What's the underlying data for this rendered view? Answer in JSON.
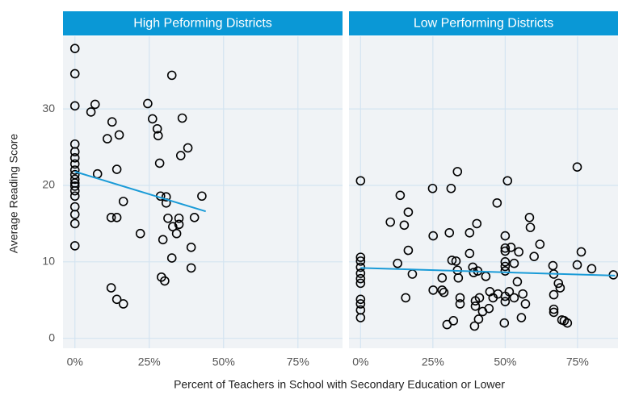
{
  "xlabel": "Percent of Teachers in School with Secondary Education or Lower",
  "ylabel": "Average Reading Score",
  "chart_data": [
    {
      "type": "scatter",
      "title": "High Peforming Districts",
      "xlim": [
        -4,
        90
      ],
      "ylim": [
        -1.3,
        39.5
      ],
      "xticks": [
        {
          "value": 0,
          "label": "0%"
        },
        {
          "value": 25,
          "label": "25%"
        },
        {
          "value": 50,
          "label": "50%"
        },
        {
          "value": 75,
          "label": "75%"
        }
      ],
      "yticks": [
        0,
        10,
        20,
        30
      ],
      "grid": true,
      "points": {
        "color": "#000000",
        "x": [
          0,
          0,
          0,
          0,
          0,
          0,
          0,
          0,
          0,
          0,
          0,
          0,
          0,
          0,
          0,
          0,
          0,
          0,
          5.4,
          6.8,
          7.6,
          10.9,
          12.5,
          12.2,
          12.2,
          14.1,
          14.1,
          14.9,
          14.1,
          16.3,
          16.3,
          22,
          24.5,
          26.1,
          27.7,
          28,
          28.5,
          28.8,
          29.6,
          29.1,
          30.2,
          30.7,
          30.7,
          31.3,
          32.6,
          32.9,
          32.6,
          34.2,
          35,
          35,
          36.1,
          35.6,
          38,
          39.1,
          39.1,
          40.2,
          42.7
        ],
        "y": [
          37.9,
          34.6,
          30.4,
          25.4,
          24.4,
          23.6,
          22.8,
          22,
          21.4,
          20.8,
          20.3,
          19.9,
          19.3,
          18.6,
          17.2,
          16.2,
          15,
          12.1,
          29.6,
          30.6,
          21.5,
          26.1,
          28.3,
          6.6,
          15.8,
          22.1,
          15.8,
          26.6,
          5.1,
          4.5,
          17.9,
          13.7,
          30.7,
          28.7,
          27.4,
          26.5,
          22.9,
          18.6,
          12.9,
          8,
          7.5,
          17.7,
          18.5,
          15.7,
          34.4,
          14.6,
          10.5,
          13.7,
          15.7,
          14.9,
          28.8,
          23.9,
          24.9,
          11.9,
          9.2,
          15.8,
          18.6
        ]
      },
      "trend": {
        "color": "#1a9bd7",
        "x": [
          0,
          44
        ],
        "y": [
          21.8,
          16.6
        ]
      }
    },
    {
      "type": "scatter",
      "title": "Low Performing Districts",
      "xlim": [
        -4,
        89
      ],
      "ylim": [
        -1.3,
        39.5
      ],
      "xticks": [
        {
          "value": 0,
          "label": "0%"
        },
        {
          "value": 25,
          "label": "25%"
        },
        {
          "value": 50,
          "label": "50%"
        },
        {
          "value": 75,
          "label": "75%"
        }
      ],
      "yticks": [
        0,
        10,
        20,
        30
      ],
      "grid": true,
      "points": {
        "color": "#000000",
        "x": [
          0,
          0,
          0,
          0,
          0,
          0,
          0,
          0,
          0,
          0,
          0,
          10.3,
          12.8,
          13.7,
          15.1,
          15.6,
          16.5,
          17.9,
          16.5,
          24.9,
          25.1,
          25.1,
          28.2,
          28.2,
          28.8,
          29.9,
          30.7,
          31.3,
          31.6,
          32.1,
          33,
          33.5,
          33.5,
          33.8,
          34.4,
          34.4,
          37.7,
          37.7,
          38.8,
          39.1,
          39.7,
          39.7,
          39.4,
          40.8,
          40.5,
          40.2,
          41.1,
          42.2,
          43.3,
          44.4,
          44.7,
          45.8,
          47.2,
          47.5,
          49.7,
          50,
          50,
          50,
          50,
          50,
          50,
          50,
          50,
          50.8,
          51.4,
          52,
          53.1,
          53.1,
          54.2,
          54.7,
          55.6,
          56.1,
          57,
          58.4,
          58.7,
          60,
          62,
          66.5,
          66.8,
          66.8,
          66.8,
          66.8,
          68.4,
          69,
          69.6,
          70.4,
          71.5,
          74.9,
          74.9,
          76.3,
          79.9,
          87.4
        ],
        "y": [
          20.6,
          10.6,
          10.1,
          9.3,
          8.5,
          7.8,
          7.2,
          5.1,
          4.5,
          3.7,
          2.7,
          15.2,
          9.8,
          18.7,
          14.8,
          5.3,
          16.5,
          8.4,
          11.5,
          19.6,
          13.4,
          6.3,
          6.3,
          7.9,
          6,
          1.8,
          13.8,
          19.6,
          10.2,
          2.3,
          10.1,
          21.8,
          8.9,
          7.9,
          4.5,
          5.3,
          13.8,
          11.1,
          9.3,
          8.6,
          4.9,
          4.2,
          1.6,
          2.5,
          8.8,
          15,
          5.3,
          3.5,
          8.1,
          3.9,
          6.1,
          5.3,
          17.7,
          5.8,
          2,
          13.4,
          11.8,
          11.4,
          10,
          9.4,
          8.8,
          5.5,
          4.8,
          20.6,
          6.1,
          11.9,
          9.8,
          5.3,
          7.4,
          11.3,
          2.7,
          5.8,
          4.5,
          15.8,
          14.5,
          10.7,
          12.3,
          9.5,
          8.4,
          5.7,
          3.8,
          3.4,
          7.2,
          6.6,
          2.4,
          2.3,
          2,
          22.4,
          9.6,
          11.3,
          9.1,
          8.3
        ]
      },
      "trend": {
        "color": "#1a9bd7",
        "x": [
          0,
          88
        ],
        "y": [
          9.2,
          8.2
        ]
      }
    }
  ]
}
